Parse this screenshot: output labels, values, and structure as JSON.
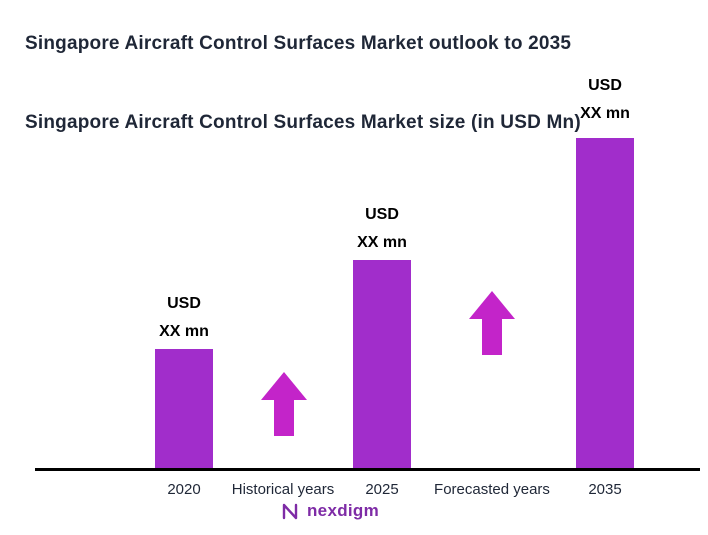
{
  "header": {
    "title": "Singapore Aircraft Control Surfaces Market outlook to 2035",
    "subtitle": "Singapore Aircraft Control Surfaces Market size (in USD Mn)"
  },
  "chart_data": {
    "type": "bar",
    "title": "Singapore Aircraft Control Surfaces Market size (in USD Mn)",
    "categories": [
      "2020",
      "2025",
      "2035"
    ],
    "values": [
      36,
      63,
      100
    ],
    "values_note": "Actual figures masked as 'XX mn' on chart; values are relative bar heights (% of tallest bar)",
    "unit": "USD mn",
    "value_labels": [
      {
        "line1": "USD",
        "line2": "XX mn"
      },
      {
        "line1": "USD",
        "line2": "XX mn"
      },
      {
        "line1": "USD",
        "line2": "XX mn"
      }
    ],
    "annotations": [
      {
        "label": "Historical years"
      },
      {
        "label": "Forecasted years"
      }
    ],
    "bar_color": "#A12DCB",
    "arrow_color": "#C324C9",
    "axis_color": "#000000",
    "legend": "none",
    "gridlines": false
  },
  "footer": {
    "brand": "nexdigm",
    "brand_color": "#7E2BA6"
  }
}
